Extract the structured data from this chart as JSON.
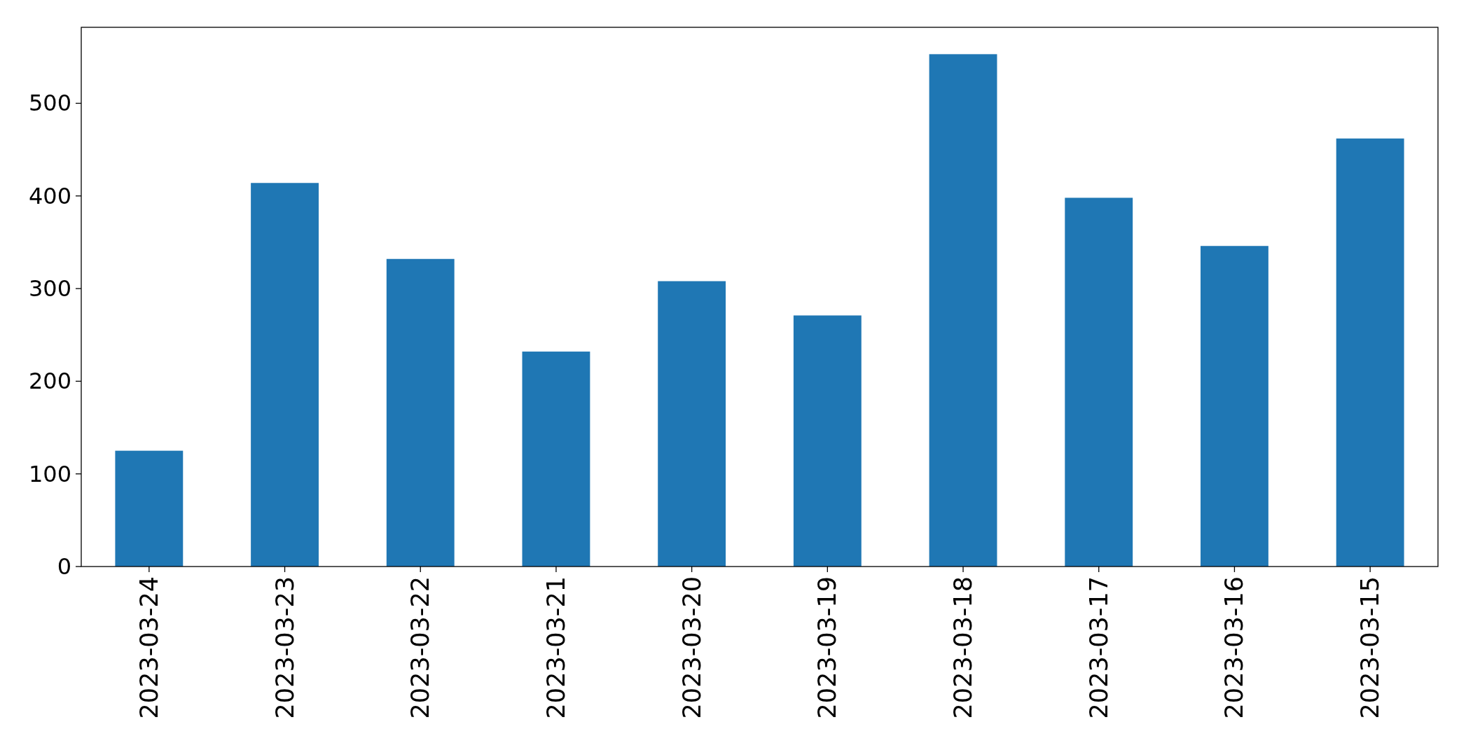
{
  "chart_data": {
    "type": "bar",
    "categories": [
      "2023-03-24",
      "2023-03-23",
      "2023-03-22",
      "2023-03-21",
      "2023-03-20",
      "2023-03-19",
      "2023-03-18",
      "2023-03-17",
      "2023-03-16",
      "2023-03-15"
    ],
    "values": [
      125,
      414,
      332,
      232,
      308,
      271,
      553,
      398,
      346,
      462
    ],
    "color": "#1f77b4",
    "ylim": [
      0,
      582
    ],
    "yticks": [
      0,
      100,
      200,
      300,
      400,
      500
    ],
    "grid": false
  }
}
